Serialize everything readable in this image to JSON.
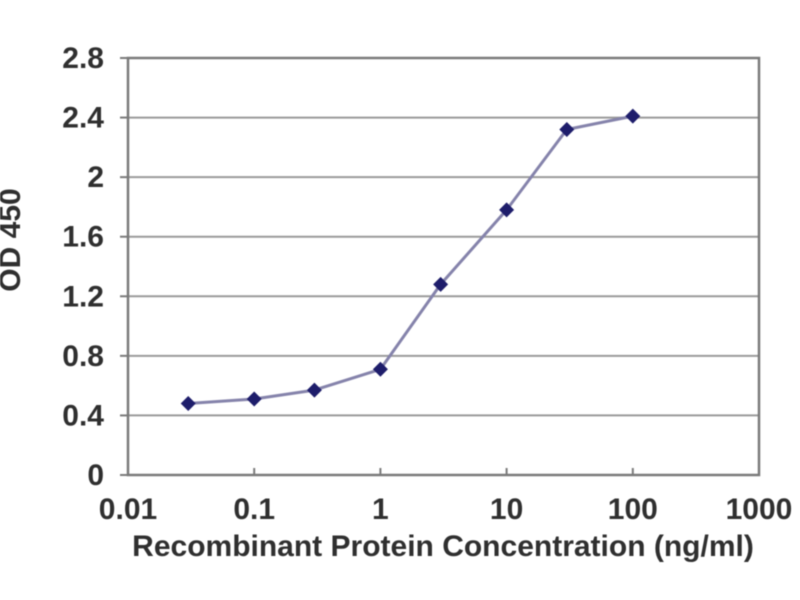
{
  "chart_data": {
    "type": "line",
    "title": "",
    "xlabel": "Recombinant Protein Concentration (ng/ml)",
    "ylabel": "OD 450",
    "x_scale": "log",
    "xlim": [
      0.01,
      1000
    ],
    "ylim": [
      0,
      2.8
    ],
    "x": [
      0.03,
      0.1,
      0.3,
      1,
      3,
      10,
      30,
      100
    ],
    "y": [
      0.48,
      0.51,
      0.57,
      0.71,
      1.28,
      1.78,
      2.32,
      2.41
    ],
    "x_ticks": [
      0.01,
      0.1,
      1,
      10,
      100,
      1000
    ],
    "x_tick_labels": [
      "0.01",
      "0.1",
      "1",
      "10",
      "100",
      "1000"
    ],
    "y_ticks": [
      0,
      0.4,
      0.8,
      1.2,
      1.6,
      2,
      2.4,
      2.8
    ],
    "y_tick_labels": [
      "0",
      "0.4",
      "0.8",
      "1.2",
      "1.6",
      "2",
      "2.4",
      "2.8"
    ],
    "grid": "horizontal",
    "legend": "none",
    "marker": "diamond",
    "colors": {
      "marker": "#1e1d6b",
      "line": "#8583ab",
      "grid": "#9a9a9a",
      "frame": "#7a7a7a",
      "text": "#2f2f2f",
      "background": "#ffffff"
    }
  }
}
